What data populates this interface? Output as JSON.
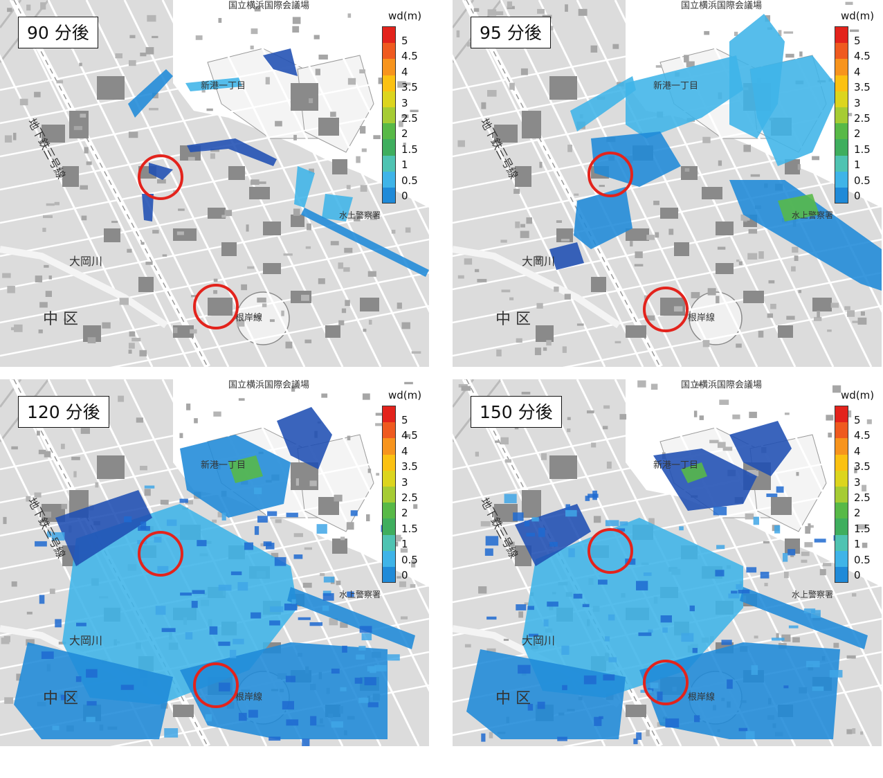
{
  "legend": {
    "title": "wd(m)",
    "ticks": [
      "5",
      "4.5",
      "4",
      "3.5",
      "3",
      "2.5",
      "2",
      "1.5",
      "1",
      "0.5",
      "0"
    ],
    "colors": [
      "#e3231c",
      "#ef5a1f",
      "#f7941d",
      "#fbc112",
      "#dcd51e",
      "#a6cc34",
      "#58b947",
      "#3fae5e",
      "#4fc3b2",
      "#3fb4e8",
      "#1f8ad8",
      "#1f4fb3"
    ]
  },
  "map_labels": {
    "conference": "国立横浜国際会議場",
    "shinko": "新港一丁目",
    "subway": "地下鉄三号線",
    "river": "大岡川",
    "ward": "中 区",
    "police": "水上警察署",
    "line": "根岸線"
  },
  "panels": [
    {
      "time_label": "90 分後",
      "flood_stage": "early",
      "markers": 2
    },
    {
      "time_label": "95 分後",
      "flood_stage": "peak",
      "markers": 2
    },
    {
      "time_label": "120 分後",
      "flood_stage": "spread",
      "markers": 2
    },
    {
      "time_label": "150 分後",
      "flood_stage": "late",
      "markers": 2
    }
  ]
}
